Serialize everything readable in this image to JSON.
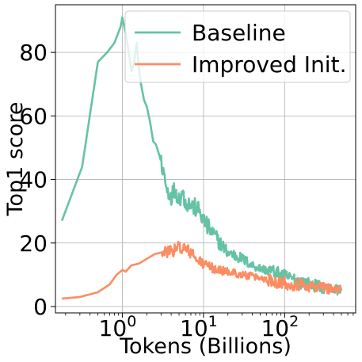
{
  "chart_data": {
    "type": "line",
    "xlabel": "Tokens (Billions)",
    "ylabel": "Top1 score",
    "xscale": "log",
    "xlim": [
      0.15,
      750
    ],
    "ylim": [
      -2,
      95
    ],
    "grid": true,
    "legend_position": "top-right",
    "x_ticks": [
      {
        "value": 1,
        "base": "10",
        "exp": "0"
      },
      {
        "value": 10,
        "base": "10",
        "exp": "1"
      },
      {
        "value": 100,
        "base": "10",
        "exp": "2"
      }
    ],
    "y_ticks": [
      0,
      20,
      40,
      60,
      80
    ],
    "series": [
      {
        "name": "Baseline",
        "color": "#66c2a5",
        "points": [
          [
            0.18,
            27
          ],
          [
            0.32,
            44
          ],
          [
            0.5,
            77
          ],
          [
            0.65,
            80
          ],
          [
            0.8,
            83
          ],
          [
            0.95,
            88
          ],
          [
            1.0,
            91
          ],
          [
            1.1,
            86
          ],
          [
            1.2,
            80
          ],
          [
            1.3,
            74
          ],
          [
            1.4,
            77
          ],
          [
            1.5,
            83
          ],
          [
            1.6,
            75
          ],
          [
            1.7,
            70
          ],
          [
            1.85,
            65
          ],
          [
            2.0,
            63
          ],
          [
            2.2,
            58
          ],
          [
            2.4,
            52
          ],
          [
            2.6,
            51
          ],
          [
            2.9,
            47
          ],
          [
            3.2,
            43
          ],
          [
            3.5,
            37
          ],
          [
            4.0,
            35
          ],
          [
            4.5,
            37
          ],
          [
            5.0,
            34
          ],
          [
            5.5,
            36
          ],
          [
            6.0,
            33
          ],
          [
            7.0,
            32
          ],
          [
            8.0,
            31
          ],
          [
            9.0,
            30
          ],
          [
            10,
            27
          ],
          [
            12,
            24
          ],
          [
            14,
            22
          ],
          [
            16,
            20
          ],
          [
            20,
            17
          ],
          [
            25,
            16
          ],
          [
            30,
            15
          ],
          [
            40,
            13
          ],
          [
            50,
            12
          ],
          [
            70,
            11
          ],
          [
            100,
            9.5
          ],
          [
            150,
            8
          ],
          [
            200,
            7
          ],
          [
            300,
            6
          ],
          [
            400,
            5.5
          ],
          [
            500,
            5
          ]
        ]
      },
      {
        "name": "Improved Init.",
        "color": "#fc8d62",
        "points": [
          [
            0.18,
            2.5
          ],
          [
            0.3,
            3
          ],
          [
            0.5,
            4.5
          ],
          [
            0.7,
            7
          ],
          [
            0.85,
            10
          ],
          [
            1.0,
            11.5
          ],
          [
            1.1,
            11
          ],
          [
            1.3,
            13
          ],
          [
            1.6,
            13.5
          ],
          [
            2.0,
            15
          ],
          [
            2.5,
            16.5
          ],
          [
            3.0,
            17
          ],
          [
            3.5,
            17
          ],
          [
            4.0,
            18
          ],
          [
            4.5,
            17.5
          ],
          [
            5.0,
            19
          ],
          [
            5.5,
            18.5
          ],
          [
            6.0,
            18
          ],
          [
            7.0,
            17
          ],
          [
            8.0,
            15
          ],
          [
            10,
            13.5
          ],
          [
            12,
            12.5
          ],
          [
            15,
            11.5
          ],
          [
            20,
            11
          ],
          [
            30,
            10
          ],
          [
            40,
            9.5
          ],
          [
            60,
            8.5
          ],
          [
            80,
            8
          ],
          [
            100,
            7.5
          ],
          [
            150,
            7
          ],
          [
            200,
            6.5
          ],
          [
            300,
            6
          ],
          [
            400,
            5.5
          ],
          [
            500,
            5
          ]
        ]
      }
    ]
  }
}
